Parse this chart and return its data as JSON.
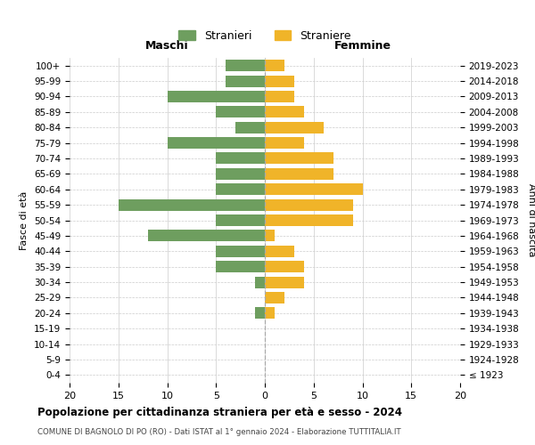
{
  "age_groups": [
    "0-4",
    "5-9",
    "10-14",
    "15-19",
    "20-24",
    "25-29",
    "30-34",
    "35-39",
    "40-44",
    "45-49",
    "50-54",
    "55-59",
    "60-64",
    "65-69",
    "70-74",
    "75-79",
    "80-84",
    "85-89",
    "90-94",
    "95-99",
    "100+"
  ],
  "birth_years": [
    "2019-2023",
    "2014-2018",
    "2009-2013",
    "2004-2008",
    "1999-2003",
    "1994-1998",
    "1989-1993",
    "1984-1988",
    "1979-1983",
    "1974-1978",
    "1969-1973",
    "1964-1968",
    "1959-1963",
    "1954-1958",
    "1949-1953",
    "1944-1948",
    "1939-1943",
    "1934-1938",
    "1929-1933",
    "1924-1928",
    "≤ 1923"
  ],
  "maschi": [
    4,
    4,
    10,
    5,
    3,
    10,
    5,
    5,
    5,
    15,
    5,
    12,
    5,
    5,
    1,
    0,
    1,
    0,
    0,
    0,
    0
  ],
  "femmine": [
    2,
    3,
    3,
    4,
    6,
    4,
    7,
    7,
    10,
    9,
    9,
    1,
    3,
    4,
    4,
    2,
    1,
    0,
    0,
    0,
    0
  ],
  "color_maschi": "#6e9e5f",
  "color_femmine": "#f0b429",
  "title": "Popolazione per cittadinanza straniera per età e sesso - 2024",
  "subtitle": "COMUNE DI BAGNOLO DI PO (RO) - Dati ISTAT al 1° gennaio 2024 - Elaborazione TUTTITALIA.IT",
  "xlabel_left": "Maschi",
  "xlabel_right": "Femmine",
  "ylabel_left": "Fasce di età",
  "ylabel_right": "Anni di nascita",
  "legend_maschi": "Stranieri",
  "legend_femmine": "Straniere",
  "xlim": 20,
  "background_color": "#ffffff",
  "grid_color": "#cccccc",
  "bar_height": 0.75
}
